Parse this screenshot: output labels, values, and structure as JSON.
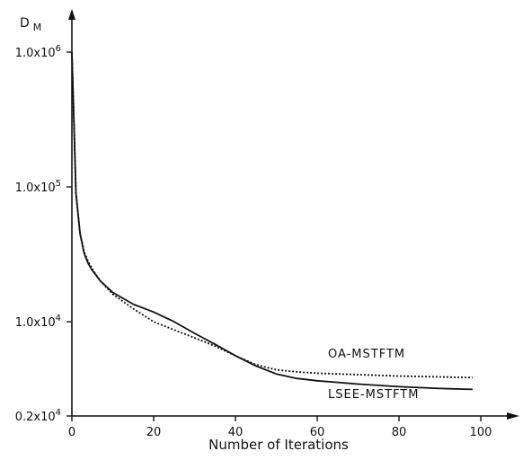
{
  "chart_data": {
    "type": "line",
    "title": "",
    "xlabel": "Number of Iterations",
    "ylabel": "D",
    "ylabel_subscript": "M",
    "xlim": [
      0,
      100
    ],
    "ylim": [
      2000,
      1000000
    ],
    "yscale": "log",
    "grid": false,
    "x_ticks": [
      {
        "value": 0,
        "label": "0"
      },
      {
        "value": 20,
        "label": "20"
      },
      {
        "value": 40,
        "label": "40"
      },
      {
        "value": 60,
        "label": "60"
      },
      {
        "value": 80,
        "label": "80"
      },
      {
        "value": 100,
        "label": "100"
      }
    ],
    "y_ticks": [
      {
        "value": 1000000,
        "label": "1.0x10",
        "exp": "6"
      },
      {
        "value": 100000,
        "label": "1.0x10",
        "exp": "5"
      },
      {
        "value": 10000,
        "label": "1.0x10",
        "exp": "4"
      },
      {
        "value": 2000,
        "label": "0.2x10",
        "exp": "4"
      }
    ],
    "series": [
      {
        "name": "OA-MSTFTM",
        "style": "dotted",
        "color": "#111111",
        "x": [
          0,
          0.5,
          1,
          2,
          3,
          4,
          5,
          7,
          10,
          15,
          20,
          25,
          30,
          35,
          40,
          45,
          50,
          55,
          60,
          70,
          80,
          90,
          98
        ],
        "y": [
          1000000,
          300000,
          90000,
          45000,
          33000,
          28000,
          24500,
          20000,
          16000,
          12500,
          10000,
          8700,
          7600,
          6600,
          5600,
          4800,
          4400,
          4250,
          4150,
          4050,
          3950,
          3900,
          3850
        ]
      },
      {
        "name": "LSEE-MSTFTM",
        "style": "solid",
        "color": "#111111",
        "x": [
          0,
          0.5,
          1,
          2,
          3,
          4,
          5,
          7,
          10,
          15,
          20,
          25,
          30,
          35,
          40,
          45,
          50,
          55,
          60,
          70,
          80,
          90,
          98
        ],
        "y": [
          1000000,
          300000,
          90000,
          45000,
          32000,
          27000,
          24000,
          20000,
          16500,
          13500,
          11800,
          10000,
          8200,
          6800,
          5600,
          4700,
          4100,
          3800,
          3650,
          3450,
          3300,
          3200,
          3150
        ]
      }
    ]
  }
}
